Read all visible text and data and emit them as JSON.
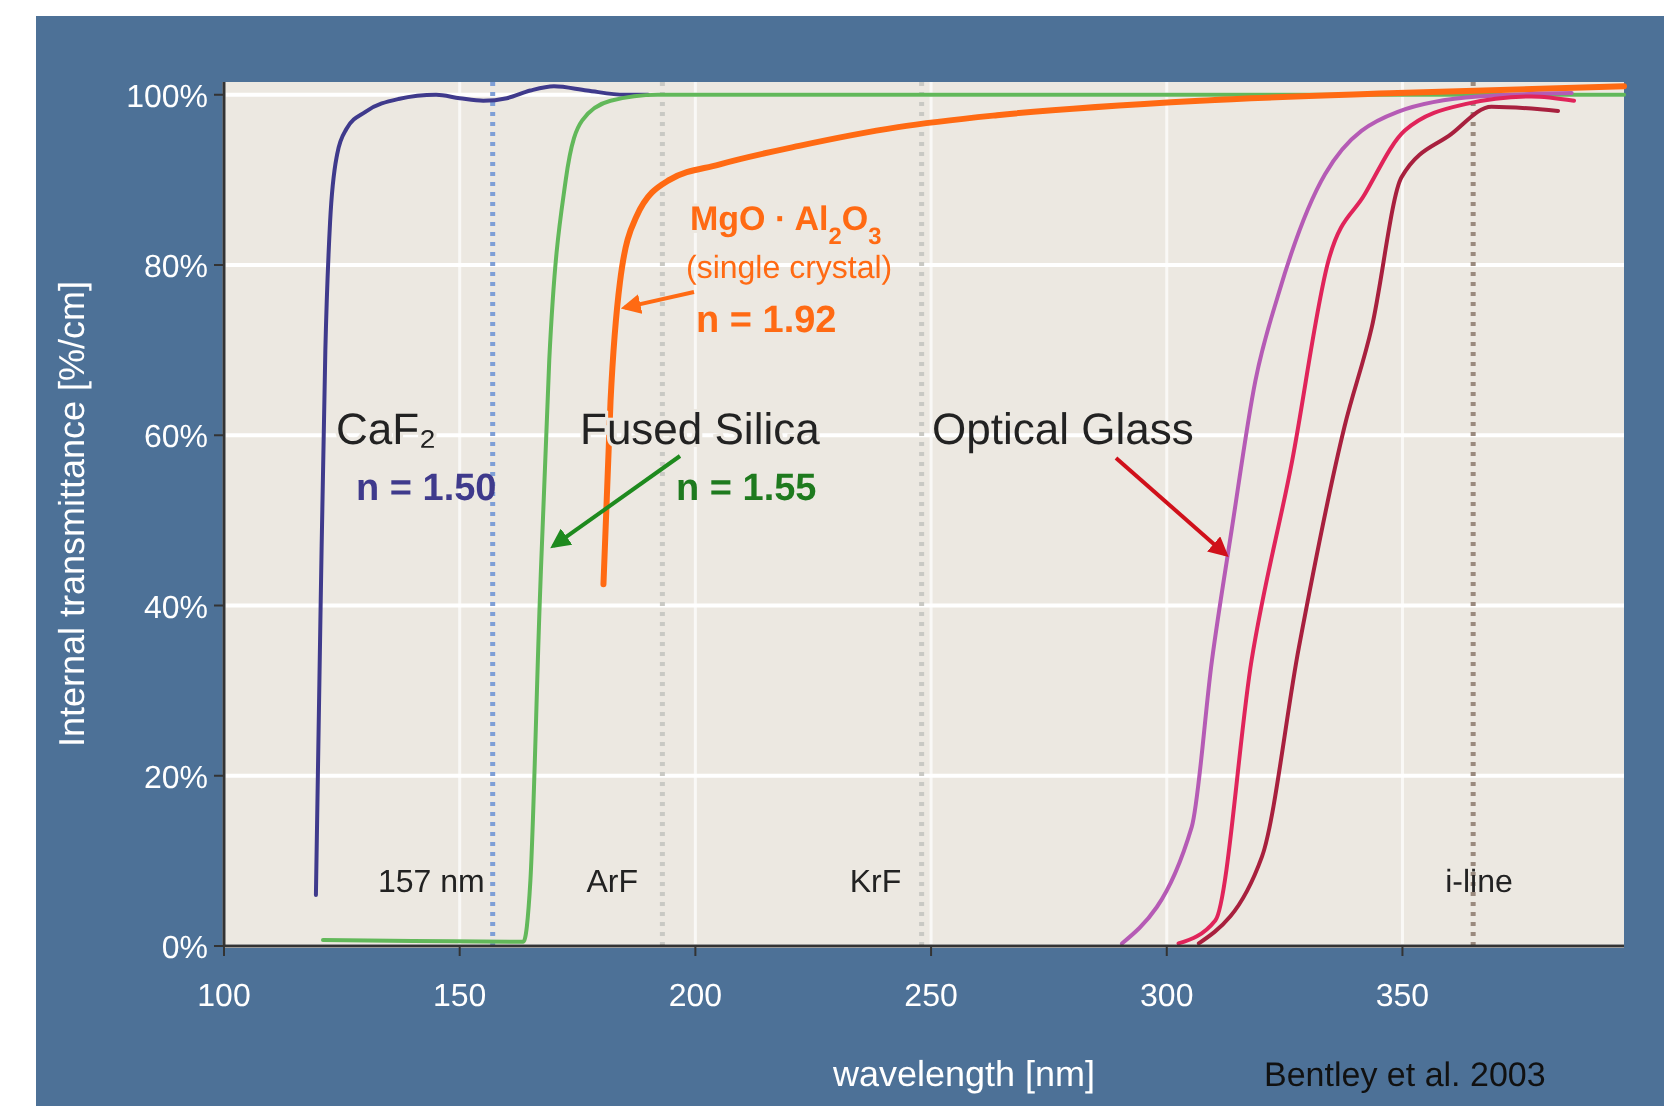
{
  "chart_data": {
    "type": "line",
    "xlabel": "wavelength [nm]",
    "ylabel": "Internal transmittance [%/cm]",
    "xlim": [
      100,
      397
    ],
    "xticks": [
      100,
      150,
      200,
      250,
      300,
      350
    ],
    "ylim": [
      0,
      101.5
    ],
    "yticks": [
      {
        "value": 0,
        "label": "0%"
      },
      {
        "value": 20,
        "label": "20%"
      },
      {
        "value": 40,
        "label": "40%"
      },
      {
        "value": 60,
        "label": "60%"
      },
      {
        "value": 80,
        "label": "80%"
      },
      {
        "value": 100,
        "label": "100%"
      }
    ],
    "grid": true,
    "marker": "none",
    "line_style": "solid",
    "series": [
      {
        "name": "CaF₂",
        "color": "#3f3a8c",
        "x": [
          119.5,
          120.5,
          121.5,
          122.5,
          124,
          126,
          130,
          137,
          145,
          150,
          155,
          160,
          165,
          170,
          177,
          185,
          190
        ],
        "values": [
          6,
          40,
          70,
          85,
          93,
          96,
          98,
          99.5,
          100,
          99.6,
          99.3,
          99.6,
          100.5,
          101,
          100.5,
          100,
          100
        ]
      },
      {
        "name": "Fused Silica",
        "color": "#62b85a",
        "x": [
          121,
          140,
          163.5,
          165,
          167,
          169,
          172.5,
          176,
          182,
          192,
          250,
          300,
          350,
          397
        ],
        "values": [
          0.7,
          0.6,
          0.5,
          7.7,
          40.6,
          68.8,
          90,
          97,
          99.3,
          100,
          100,
          100,
          100,
          100
        ]
      },
      {
        "name": "MgO · Al$_{2}$O$_{3}$",
        "color": "#ff6a13",
        "x": [
          180.5,
          182,
          184,
          187.5,
          194.5,
          205,
          222,
          243,
          264,
          307,
          349,
          397
        ],
        "values": [
          42.5,
          64,
          78,
          85.7,
          90,
          91.8,
          94,
          96.2,
          97.6,
          99.3,
          100.2,
          101
        ]
      },
      {
        "color": "#b55bb5",
        "x": [
          290.5,
          305.3,
          309.6,
          313.8,
          318.8,
          323.7,
          333.6,
          349,
          366,
          385.9
        ],
        "values": [
          0.3,
          14,
          33.6,
          49,
          66.4,
          76.6,
          90.7,
          98,
          99.8,
          100.2
        ]
      },
      {
        "color": "#e0245a",
        "x": [
          302.5,
          310.3,
          318,
          326.6,
          334.3,
          342,
          350.5,
          363.3,
          377.4,
          386.4
        ],
        "values": [
          0.3,
          3,
          33.6,
          57,
          80.5,
          88.3,
          95.8,
          98.9,
          99.8,
          99.3
        ]
      },
      {
        "color": "#a8203e",
        "x": [
          306.8,
          320.2,
          328,
          337.7,
          343.5,
          349.8,
          360.4,
          368.9,
          383
        ],
        "values": [
          0.3,
          10.5,
          35,
          61,
          72.7,
          90.3,
          95.4,
          98.6,
          98.1
        ]
      }
    ],
    "ref_lines": [
      {
        "axis": "x",
        "value": 157,
        "label": "157 nm",
        "color": "#7f9fd6",
        "line_style": "dotted"
      },
      {
        "axis": "x",
        "value": 193,
        "label": "ArF",
        "color": "#c9c9c4",
        "line_style": "dotted"
      },
      {
        "axis": "x",
        "value": 248,
        "label": "KrF",
        "color": "#c9c9c4",
        "line_style": "dotted"
      },
      {
        "axis": "x",
        "value": 365,
        "label": "i-line",
        "color": "#9a8a7e",
        "line_style": "dotted"
      }
    ],
    "annotations": [
      "n = 1.50",
      {
        "text": "n = 1.55",
        "x": 169.9,
        "y": 47
      },
      "(single crystal)",
      {
        "text": "n = 1.92",
        "x": 185,
        "y": 75
      },
      {
        "text": "Optical Glass",
        "x": 312.5,
        "y": 46
      },
      "Bentley et al. 2003"
    ]
  }
}
